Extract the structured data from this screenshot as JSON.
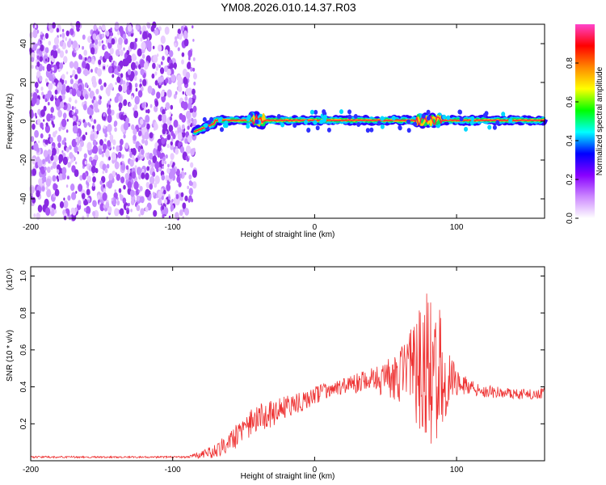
{
  "figure_title": "YM08.2026.010.14.37.R03",
  "chart_data": [
    {
      "type": "heatmap",
      "title": "YM08.2026.010.14.37.R03",
      "xlabel": "Height of straight line (km)",
      "ylabel": "Frequency (Hz)",
      "xlim": [
        -200,
        162
      ],
      "ylim": [
        -50,
        50
      ],
      "xticks": [
        -200,
        -100,
        0,
        100
      ],
      "yticks": [
        -40,
        -20,
        0,
        20,
        40
      ],
      "colorbar": {
        "label": "Normalized spectral amplitude",
        "range": [
          0,
          1
        ],
        "ticks": [
          0.0,
          0.2,
          0.4,
          0.6,
          0.8
        ],
        "colors": [
          "#ffffff",
          "#cc88ff",
          "#8800ff",
          "#0000ff",
          "#00ffff",
          "#00ff00",
          "#ffff00",
          "#ff8800",
          "#ff0000",
          "#ff44cc"
        ]
      },
      "regions": [
        {
          "name": "noise",
          "x_range": [
            -200,
            -80
          ],
          "f_range": [
            -50,
            50
          ],
          "amplitude": 0.05
        },
        {
          "name": "signal-band",
          "x_range": [
            -85,
            162
          ],
          "f_center": 0.5,
          "amplitude": 1.0
        }
      ]
    },
    {
      "type": "line",
      "xlabel": "Height of straight line (km)",
      "ylabel": "SNR (10 * v/v)",
      "y_scale_label": "(x10⁴)",
      "xlim": [
        -200,
        162
      ],
      "ylim": [
        0.0,
        1.05
      ],
      "xticks": [
        -200,
        -100,
        0,
        100
      ],
      "yticks": [
        0.2,
        0.4,
        0.6,
        0.8,
        1.0
      ],
      "color": "#ee3333",
      "series": [
        {
          "name": "SNR",
          "x": [
            -200,
            -150,
            -90,
            -75,
            -65,
            -55,
            -45,
            -35,
            -25,
            -15,
            -5,
            5,
            15,
            25,
            35,
            45,
            55,
            65,
            72,
            78,
            82,
            86,
            90,
            95,
            100,
            110,
            120,
            130,
            140,
            150,
            162
          ],
          "y": [
            0.02,
            0.02,
            0.02,
            0.04,
            0.08,
            0.14,
            0.2,
            0.24,
            0.27,
            0.31,
            0.33,
            0.37,
            0.39,
            0.41,
            0.43,
            0.44,
            0.45,
            0.47,
            0.48,
            0.5,
            0.52,
            0.5,
            0.48,
            0.45,
            0.42,
            0.4,
            0.38,
            0.37,
            0.36,
            0.36,
            0.37
          ],
          "noise": [
            0.005,
            0.005,
            0.005,
            0.03,
            0.05,
            0.07,
            0.08,
            0.08,
            0.07,
            0.06,
            0.05,
            0.05,
            0.04,
            0.05,
            0.06,
            0.08,
            0.12,
            0.2,
            0.3,
            0.4,
            0.45,
            0.4,
            0.3,
            0.15,
            0.07,
            0.04,
            0.04,
            0.03,
            0.03,
            0.03,
            0.03
          ]
        }
      ]
    }
  ]
}
